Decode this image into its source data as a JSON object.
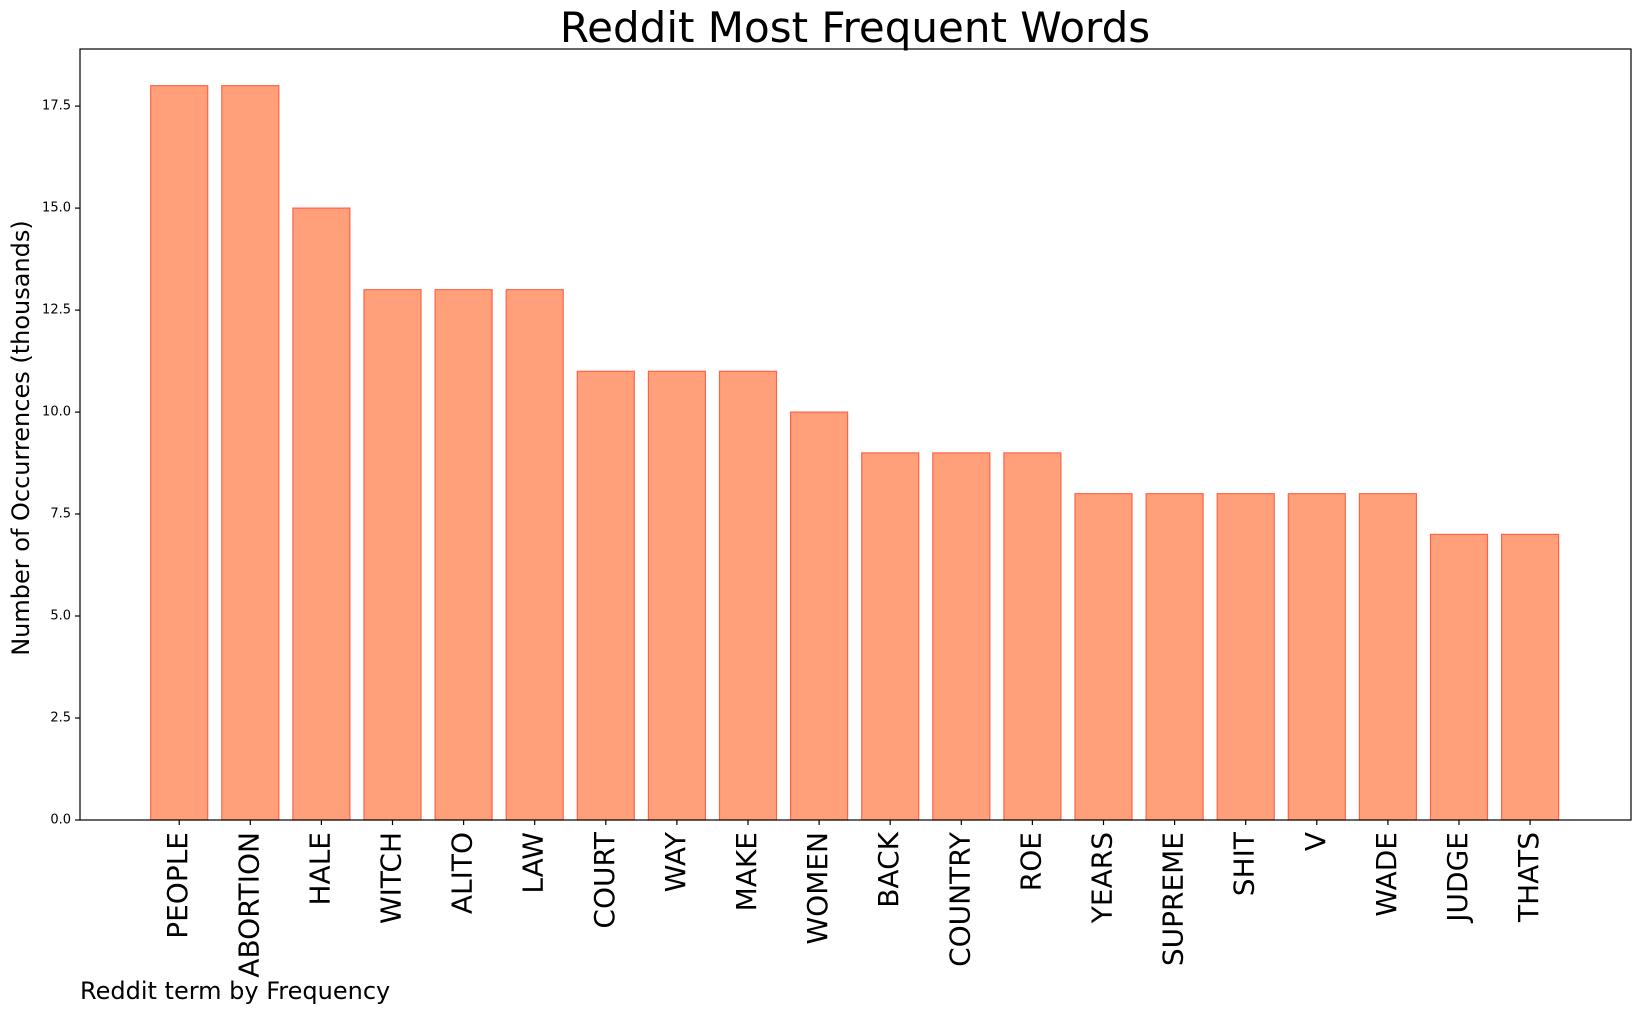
{
  "chart_data": {
    "type": "bar",
    "title": "Reddit Most Frequent Words",
    "xlabel": "Reddit term by Frequency",
    "ylabel": "Number of Occurrences (thousands)",
    "categories": [
      "PEOPLE",
      "ABORTION",
      "HALE",
      "WITCH",
      "ALITO",
      "LAW",
      "COURT",
      "WAY",
      "MAKE",
      "WOMEN",
      "BACK",
      "COUNTRY",
      "ROE",
      "YEARS",
      "SUPREME",
      "SHIT",
      "V",
      "WADE",
      "JUDGE",
      "THATS"
    ],
    "values": [
      18,
      18,
      15,
      13,
      13,
      13,
      11,
      11,
      11,
      10,
      9,
      9,
      9,
      8,
      8,
      8,
      8,
      8,
      7,
      7
    ],
    "ylim": [
      0,
      18.9
    ],
    "yticks": [
      "0.0",
      "2.5",
      "5.0",
      "7.5",
      "10.0",
      "12.5",
      "15.0",
      "17.5"
    ],
    "grid": false,
    "bar_fill": "#FFA07A",
    "bar_edge": "#FF6347"
  }
}
